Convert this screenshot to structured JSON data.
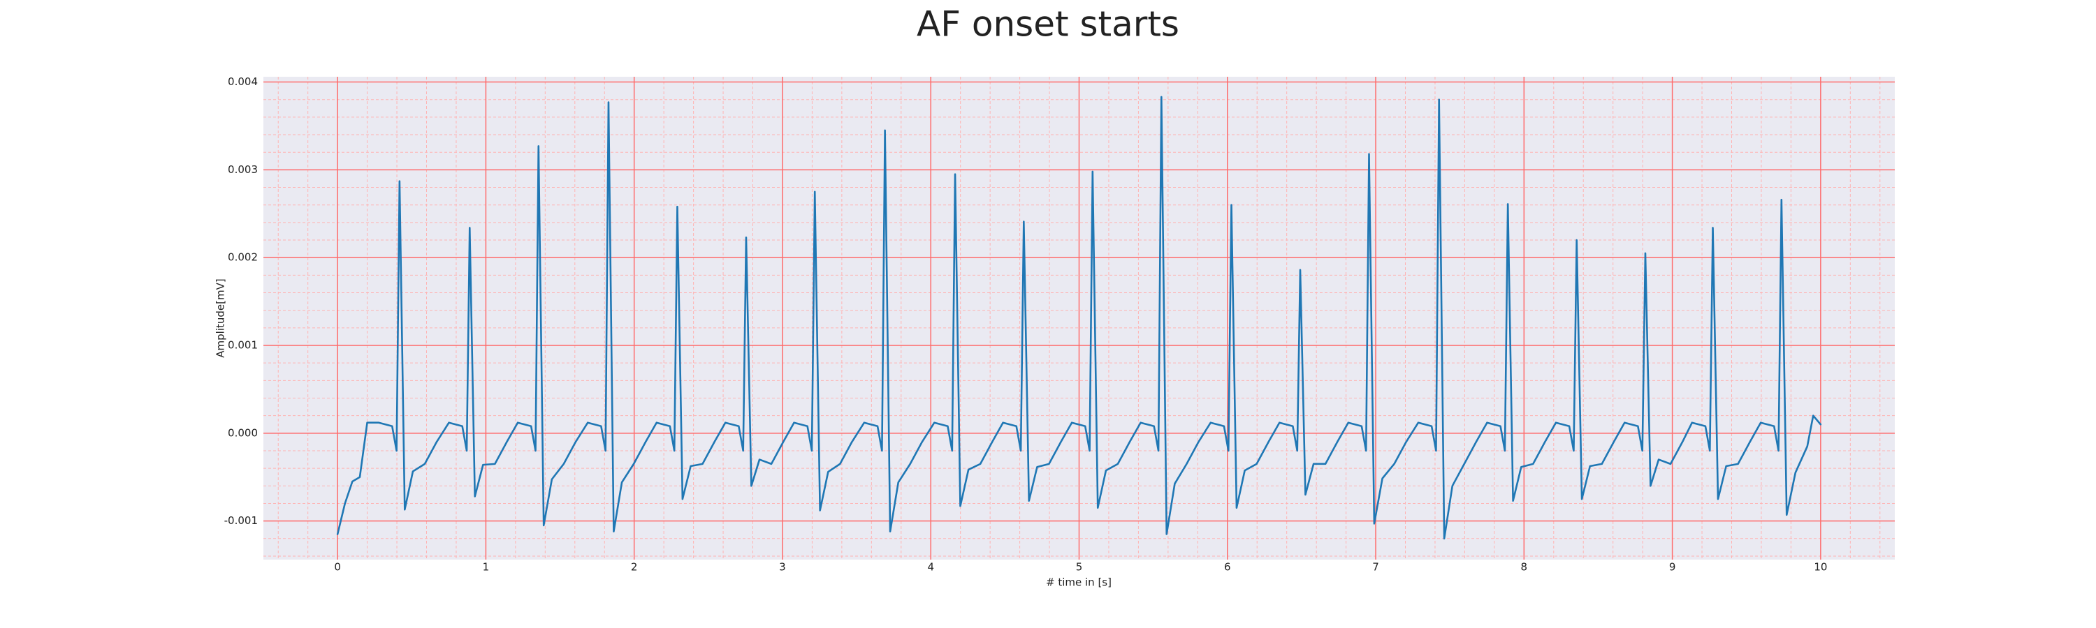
{
  "chart_data": {
    "type": "line",
    "title": "AF onset starts",
    "xlabel": "# time in [s]",
    "ylabel": "Amplitude[mV]",
    "color": "#1f77b4",
    "grid": true,
    "minor_grid": true,
    "minor_divisions": 5,
    "xlim": [
      -0.5,
      10.5
    ],
    "ylim": [
      -0.00144,
      0.00406
    ],
    "xticks": [
      0,
      1,
      2,
      3,
      4,
      5,
      6,
      7,
      8,
      9,
      10
    ],
    "yticks": [
      -0.001,
      {
        "value": 0,
        "label": "0.000"
      },
      0.001,
      0.002,
      0.003,
      0.004
    ],
    "x": [
      0,
      0.05,
      0.1,
      0.15,
      0.2,
      0.278,
      0.368,
      0.398,
      0.418,
      0.453,
      0.508,
      0.588,
      0.668,
      0.751,
      0.841,
      0.871,
      0.891,
      0.926,
      0.981,
      1.061,
      1.141,
      1.215,
      1.305,
      1.335,
      1.355,
      1.39,
      1.445,
      1.525,
      1.605,
      1.687,
      1.777,
      1.807,
      1.827,
      1.862,
      1.917,
      1.997,
      2.077,
      2.151,
      2.241,
      2.271,
      2.291,
      2.326,
      2.381,
      2.461,
      2.541,
      2.615,
      2.705,
      2.735,
      2.755,
      2.79,
      2.845,
      2.925,
      3.005,
      3.078,
      3.168,
      3.198,
      3.218,
      3.253,
      3.308,
      3.388,
      3.468,
      3.551,
      3.641,
      3.671,
      3.691,
      3.726,
      3.781,
      3.861,
      3.941,
      4.024,
      4.114,
      4.144,
      4.164,
      4.199,
      4.254,
      4.334,
      4.414,
      4.487,
      4.577,
      4.607,
      4.627,
      4.662,
      4.717,
      4.797,
      4.877,
      4.951,
      5.041,
      5.071,
      5.091,
      5.126,
      5.181,
      5.261,
      5.341,
      5.415,
      5.505,
      5.535,
      5.555,
      5.59,
      5.645,
      5.725,
      5.805,
      5.887,
      5.977,
      6.007,
      6.027,
      6.062,
      6.117,
      6.197,
      6.277,
      6.351,
      6.441,
      6.471,
      6.491,
      6.526,
      6.581,
      6.661,
      6.741,
      6.815,
      6.905,
      6.935,
      6.955,
      6.99,
      7.045,
      7.125,
      7.205,
      7.287,
      7.377,
      7.407,
      7.427,
      7.462,
      7.517,
      7.597,
      7.677,
      7.751,
      7.841,
      7.871,
      7.891,
      7.926,
      7.981,
      8.061,
      8.141,
      8.215,
      8.305,
      8.335,
      8.355,
      8.39,
      8.445,
      8.525,
      8.605,
      8.678,
      8.768,
      8.798,
      8.818,
      8.853,
      8.908,
      8.988,
      9.068,
      9.133,
      9.223,
      9.253,
      9.273,
      9.308,
      9.363,
      9.443,
      9.523,
      9.596,
      9.686,
      9.716,
      9.736,
      9.771,
      9.83,
      9.91,
      9.95,
      10.0
    ],
    "values": [
      -0.00115,
      -0.0008,
      -0.00055,
      -0.0005,
      0.00012,
      0.00012,
      8e-05,
      -0.0002,
      0.00287,
      -0.00087,
      -0.000435,
      -0.00035,
      -0.0001,
      0.00012,
      8e-05,
      -0.0002,
      0.00234,
      -0.00072,
      -0.00036,
      -0.00035,
      -0.0001,
      0.00012,
      8e-05,
      -0.0002,
      0.00327,
      -0.00105,
      -0.000525,
      -0.00035,
      -0.0001,
      0.00012,
      8e-05,
      -0.0002,
      0.00377,
      -0.00112,
      -0.00056,
      -0.00035,
      -0.0001,
      0.00012,
      8e-05,
      -0.0002,
      0.00258,
      -0.00075,
      -0.000375,
      -0.00035,
      -0.0001,
      0.00012,
      8e-05,
      -0.0002,
      0.00223,
      -0.0006,
      -0.0003,
      -0.00035,
      -0.0001,
      0.00012,
      8e-05,
      -0.0002,
      0.00275,
      -0.00088,
      -0.00044,
      -0.00035,
      -0.0001,
      0.00012,
      8e-05,
      -0.0002,
      0.00345,
      -0.00112,
      -0.00056,
      -0.00035,
      -0.0001,
      0.00012,
      8e-05,
      -0.0002,
      0.00295,
      -0.00083,
      -0.000415,
      -0.00035,
      -0.0001,
      0.00012,
      8e-05,
      -0.0002,
      0.00241,
      -0.00077,
      -0.000385,
      -0.00035,
      -0.0001,
      0.00012,
      8e-05,
      -0.0002,
      0.00298,
      -0.00085,
      -0.000425,
      -0.00035,
      -0.0001,
      0.00012,
      8e-05,
      -0.0002,
      0.00383,
      -0.00115,
      -0.000575,
      -0.00035,
      -0.0001,
      0.00012,
      8e-05,
      -0.0002,
      0.0026,
      -0.00085,
      -0.000425,
      -0.00035,
      -0.0001,
      0.00012,
      8e-05,
      -0.0002,
      0.00186,
      -0.0007,
      -0.00035,
      -0.00035,
      -0.0001,
      0.00012,
      8e-05,
      -0.0002,
      0.00318,
      -0.00103,
      -0.000515,
      -0.00035,
      -0.0001,
      0.00012,
      8e-05,
      -0.0002,
      0.0038,
      -0.0012,
      -0.0006,
      -0.00035,
      -0.0001,
      0.00012,
      8e-05,
      -0.0002,
      0.00261,
      -0.00077,
      -0.000385,
      -0.00035,
      -0.0001,
      0.00012,
      8e-05,
      -0.0002,
      0.0022,
      -0.00075,
      -0.000375,
      -0.00035,
      -0.0001,
      0.00012,
      8e-05,
      -0.0002,
      0.00205,
      -0.0006,
      -0.0003,
      -0.00035,
      -0.0001,
      0.00012,
      8e-05,
      -0.0002,
      0.00234,
      -0.00075,
      -0.000375,
      -0.00035,
      -0.0001,
      0.00012,
      8e-05,
      -0.0002,
      0.00266,
      -0.00093,
      -0.00045,
      -0.00015,
      0.0002,
      0.0001
    ]
  }
}
